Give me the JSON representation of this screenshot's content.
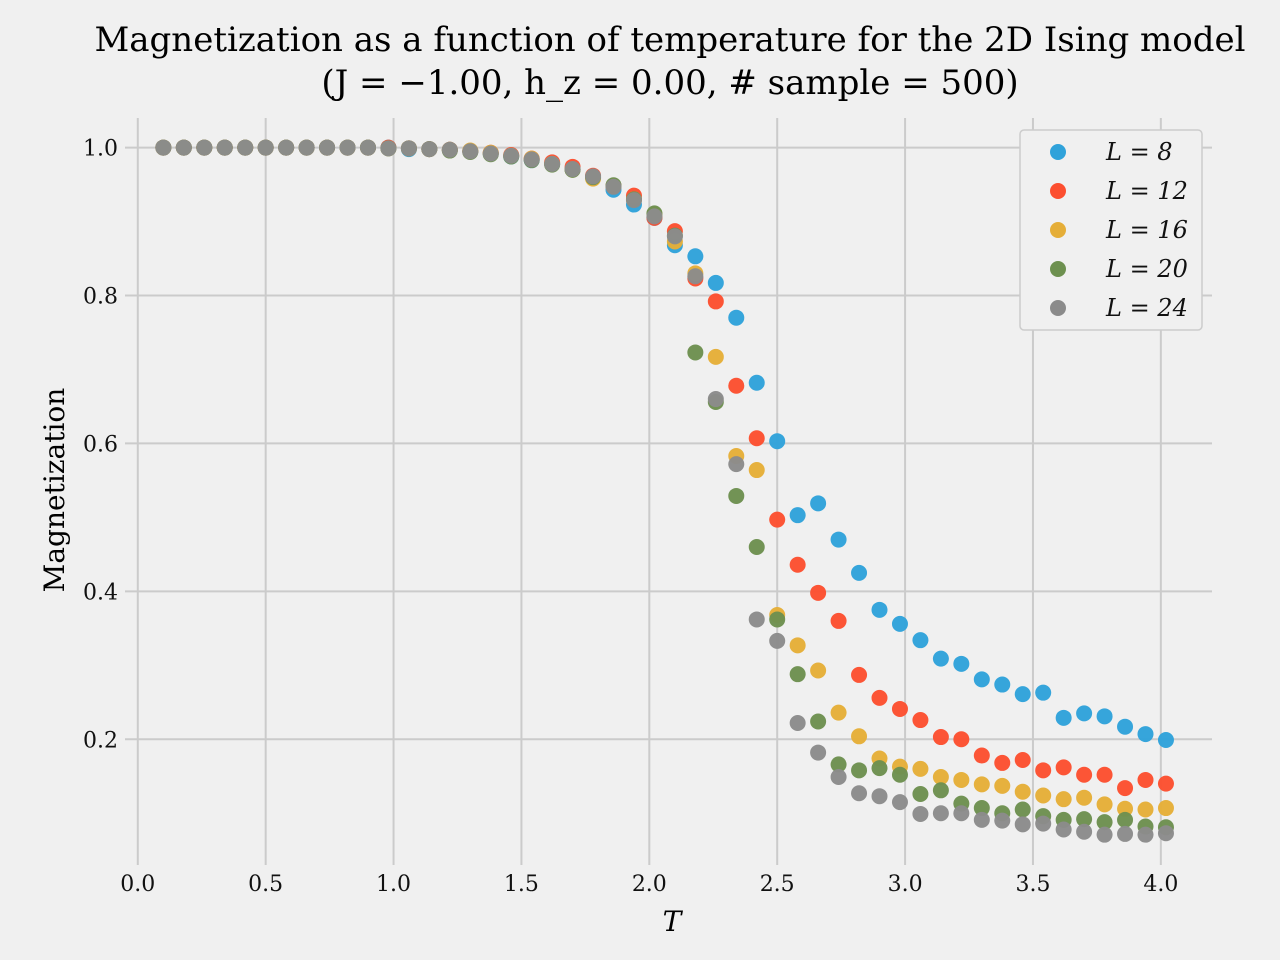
{
  "chart_data": {
    "type": "scatter",
    "title": "Magnetization as a function of temperature for the 2D Ising model",
    "subtitle": "(J = −1.00, h_z = 0.00, # sample = 500)",
    "xlabel": "T",
    "ylabel": "Magnetization",
    "xlim": [
      -0.05,
      4.2
    ],
    "ylim": [
      0.03,
      1.04
    ],
    "xticks": [
      "0.0",
      "0.5",
      "1.0",
      "1.5",
      "2.0",
      "2.5",
      "3.0",
      "3.5",
      "4.0"
    ],
    "yticks": [
      "0.2",
      "0.4",
      "0.6",
      "0.8",
      "1.0"
    ],
    "grid": true,
    "legend_position": "top-right",
    "x": [
      0.1,
      0.18,
      0.26,
      0.34,
      0.42,
      0.5,
      0.58,
      0.66,
      0.74,
      0.82,
      0.9,
      0.98,
      1.06,
      1.14,
      1.22,
      1.3,
      1.38,
      1.46,
      1.54,
      1.62,
      1.7,
      1.78,
      1.86,
      1.94,
      2.02,
      2.1,
      2.18,
      2.26,
      2.34,
      2.42,
      2.5,
      2.58,
      2.66,
      2.74,
      2.82,
      2.9,
      2.98,
      3.06,
      3.14,
      3.22,
      3.3,
      3.38,
      3.46,
      3.54,
      3.62,
      3.7,
      3.78,
      3.86,
      3.94,
      4.02
    ],
    "series": [
      {
        "name": "L = 8",
        "color": "#30a2da",
        "values": [
          1.0,
          1.0,
          1.0,
          1.0,
          1.0,
          1.0,
          1.0,
          1.0,
          1.0,
          1.0,
          1.0,
          1.0,
          0.998,
          0.998,
          0.997,
          0.995,
          0.992,
          0.988,
          0.983,
          0.978,
          0.97,
          0.96,
          0.943,
          0.923,
          0.905,
          0.868,
          0.853,
          0.817,
          0.77,
          0.682,
          0.603,
          0.503,
          0.519,
          0.47,
          0.425,
          0.375,
          0.356,
          0.334,
          0.309,
          0.302,
          0.281,
          0.274,
          0.261,
          0.263,
          0.229,
          0.235,
          0.231,
          0.217,
          0.207,
          0.199
        ]
      },
      {
        "name": "L = 12",
        "color": "#fc4f30",
        "values": [
          1.0,
          1.0,
          1.0,
          1.0,
          1.0,
          1.0,
          1.0,
          1.0,
          1.0,
          1.0,
          1.0,
          1.0,
          0.999,
          0.998,
          0.997,
          0.995,
          0.993,
          0.99,
          0.985,
          0.98,
          0.974,
          0.962,
          0.948,
          0.935,
          0.905,
          0.887,
          0.823,
          0.792,
          0.678,
          0.607,
          0.497,
          0.436,
          0.398,
          0.36,
          0.287,
          0.256,
          0.241,
          0.226,
          0.203,
          0.2,
          0.178,
          0.168,
          0.172,
          0.158,
          0.162,
          0.152,
          0.152,
          0.134,
          0.145,
          0.14
        ]
      },
      {
        "name": "L = 16",
        "color": "#e5ae38",
        "values": [
          1.0,
          1.0,
          1.0,
          1.0,
          1.0,
          1.0,
          1.0,
          1.0,
          1.0,
          1.0,
          1.0,
          0.999,
          0.999,
          0.998,
          0.997,
          0.996,
          0.993,
          0.989,
          0.985,
          0.978,
          0.97,
          0.958,
          0.948,
          0.93,
          0.91,
          0.873,
          0.83,
          0.717,
          0.583,
          0.564,
          0.368,
          0.327,
          0.293,
          0.236,
          0.204,
          0.174,
          0.163,
          0.16,
          0.149,
          0.145,
          0.139,
          0.137,
          0.129,
          0.124,
          0.119,
          0.121,
          0.112,
          0.106,
          0.105,
          0.107
        ]
      },
      {
        "name": "L = 20",
        "color": "#6d904f",
        "values": [
          1.0,
          1.0,
          1.0,
          1.0,
          1.0,
          1.0,
          1.0,
          1.0,
          1.0,
          1.0,
          1.0,
          0.999,
          0.999,
          0.998,
          0.996,
          0.994,
          0.991,
          0.988,
          0.983,
          0.977,
          0.97,
          0.96,
          0.949,
          0.93,
          0.911,
          0.881,
          0.723,
          0.656,
          0.529,
          0.46,
          0.362,
          0.288,
          0.224,
          0.166,
          0.158,
          0.161,
          0.152,
          0.126,
          0.131,
          0.113,
          0.107,
          0.1,
          0.105,
          0.096,
          0.091,
          0.092,
          0.088,
          0.091,
          0.082,
          0.081
        ]
      },
      {
        "name": "L = 24",
        "color": "#8b8b8b",
        "values": [
          1.0,
          1.0,
          1.0,
          1.0,
          1.0,
          1.0,
          1.0,
          1.0,
          1.0,
          1.0,
          1.0,
          0.999,
          0.999,
          0.998,
          0.997,
          0.995,
          0.992,
          0.989,
          0.984,
          0.978,
          0.971,
          0.961,
          0.947,
          0.929,
          0.907,
          0.88,
          0.826,
          0.66,
          0.572,
          0.362,
          0.333,
          0.222,
          0.182,
          0.149,
          0.127,
          0.123,
          0.115,
          0.099,
          0.1,
          0.1,
          0.091,
          0.09,
          0.085,
          0.086,
          0.078,
          0.075,
          0.071,
          0.072,
          0.071,
          0.073
        ]
      }
    ]
  }
}
